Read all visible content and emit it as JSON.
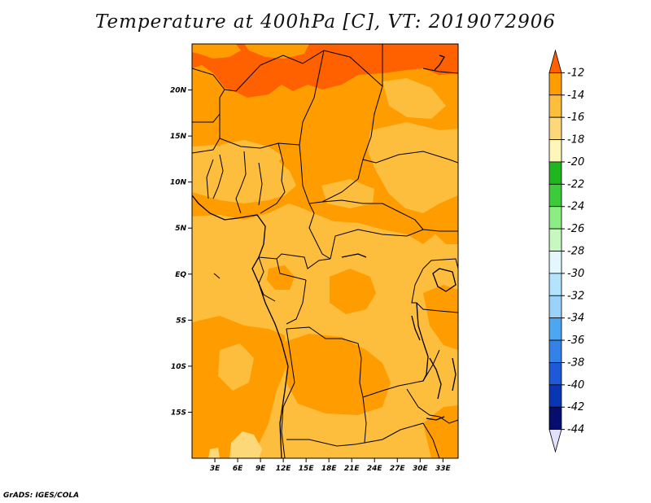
{
  "title": "Temperature at 400hPa [C], VT: 2019072906",
  "credit": "GrADS: IGES/COLA",
  "map": {
    "lon_range": [
      0,
      35
    ],
    "lat_range": [
      -20,
      25
    ],
    "lon_ticks": [
      {
        "value": 3,
        "label": "3E"
      },
      {
        "value": 6,
        "label": "6E"
      },
      {
        "value": 9,
        "label": "9E"
      },
      {
        "value": 12,
        "label": "12E"
      },
      {
        "value": 15,
        "label": "15E"
      },
      {
        "value": 18,
        "label": "18E"
      },
      {
        "value": 21,
        "label": "21E"
      },
      {
        "value": 24,
        "label": "24E"
      },
      {
        "value": 27,
        "label": "27E"
      },
      {
        "value": 30,
        "label": "30E"
      },
      {
        "value": 33,
        "label": "33E"
      }
    ],
    "lat_ticks": [
      {
        "value": 20,
        "label": "20N"
      },
      {
        "value": 15,
        "label": "15N"
      },
      {
        "value": 10,
        "label": "10N"
      },
      {
        "value": 5,
        "label": "5N"
      },
      {
        "value": 0,
        "label": "EQ"
      },
      {
        "value": -5,
        "label": "5S"
      },
      {
        "value": -10,
        "label": "10S"
      },
      {
        "value": -15,
        "label": "15S"
      }
    ],
    "base_color": "#fabd3c"
  },
  "colorbar": {
    "labels": [
      "-12",
      "-14",
      "-16",
      "-18",
      "-20",
      "-22",
      "-24",
      "-26",
      "-28",
      "-30",
      "-32",
      "-34",
      "-36",
      "-38",
      "-40",
      "-42",
      "-44"
    ],
    "colors": [
      "#ff6100",
      "#fe9c00",
      "#fdbd3d",
      "#fcd878",
      "#fef5b9",
      "#1fb61f",
      "#3ccb3b",
      "#8ded85",
      "#c6f8c0",
      "#e3f8fe",
      "#b4e3fc",
      "#9bd2fa",
      "#4da6f2",
      "#3481e8",
      "#1e5ad7",
      "#0937b4",
      "#050e6e",
      "#e1e1fb"
    ]
  }
}
